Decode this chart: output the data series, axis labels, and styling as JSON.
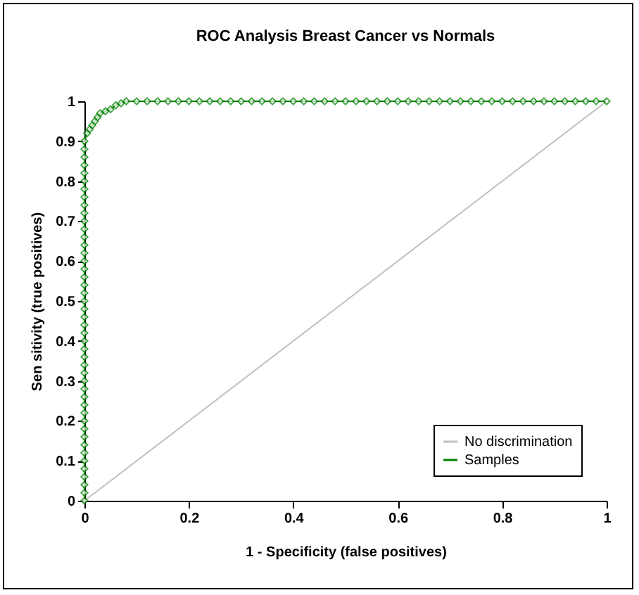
{
  "chart_data": {
    "type": "line",
    "title": "ROC Analysis Breast Cancer vs Normals",
    "xlabel": "1 - Specificity (false positives)",
    "ylabel": "Sen sitivity (true positives)",
    "xlim": [
      0,
      1
    ],
    "ylim": [
      0,
      1
    ],
    "xticks": [
      0,
      0.2,
      0.4,
      0.6,
      0.8,
      1
    ],
    "yticks": [
      0,
      0.1,
      0.2,
      0.3,
      0.4,
      0.5,
      0.6,
      0.7,
      0.8,
      0.9,
      1
    ],
    "grid": false,
    "legend": "bottom right",
    "series": [
      {
        "name": "No discrimination",
        "color": "#c0c0c0",
        "marker": "none",
        "x": [
          0,
          1
        ],
        "values": [
          0,
          1
        ]
      },
      {
        "name": "Samples",
        "color": "#008000",
        "marker": "diamond",
        "x": [
          0,
          0,
          0,
          0,
          0,
          0,
          0,
          0,
          0,
          0,
          0,
          0,
          0,
          0,
          0,
          0,
          0,
          0,
          0,
          0,
          0,
          0,
          0,
          0,
          0,
          0,
          0,
          0,
          0,
          0,
          0,
          0,
          0,
          0,
          0,
          0,
          0,
          0,
          0,
          0,
          0,
          0,
          0,
          0,
          0,
          0,
          0.005,
          0.01,
          0.015,
          0.02,
          0.025,
          0.03,
          0.04,
          0.05,
          0.06,
          0.07,
          0.08,
          0.1,
          0.12,
          0.14,
          0.16,
          0.18,
          0.2,
          0.22,
          0.24,
          0.26,
          0.28,
          0.3,
          0.32,
          0.34,
          0.36,
          0.38,
          0.4,
          0.42,
          0.44,
          0.46,
          0.48,
          0.5,
          0.52,
          0.54,
          0.56,
          0.58,
          0.6,
          0.62,
          0.64,
          0.66,
          0.68,
          0.7,
          0.72,
          0.74,
          0.76,
          0.78,
          0.8,
          0.82,
          0.84,
          0.86,
          0.88,
          0.9,
          0.92,
          0.94,
          0.96,
          0.98,
          1
        ],
        "values": [
          0,
          0.02,
          0.04,
          0.06,
          0.08,
          0.1,
          0.12,
          0.14,
          0.16,
          0.18,
          0.2,
          0.22,
          0.24,
          0.26,
          0.28,
          0.3,
          0.32,
          0.34,
          0.36,
          0.38,
          0.4,
          0.42,
          0.44,
          0.46,
          0.48,
          0.5,
          0.52,
          0.54,
          0.56,
          0.58,
          0.6,
          0.62,
          0.64,
          0.66,
          0.68,
          0.7,
          0.72,
          0.74,
          0.76,
          0.78,
          0.8,
          0.82,
          0.84,
          0.86,
          0.88,
          0.9,
          0.92,
          0.93,
          0.94,
          0.95,
          0.96,
          0.97,
          0.975,
          0.98,
          0.99,
          0.995,
          1,
          1,
          1,
          1,
          1,
          1,
          1,
          1,
          1,
          1,
          1,
          1,
          1,
          1,
          1,
          1,
          1,
          1,
          1,
          1,
          1,
          1,
          1,
          1,
          1,
          1,
          1,
          1,
          1,
          1,
          1,
          1,
          1,
          1,
          1,
          1,
          1,
          1,
          1,
          1,
          1,
          1,
          1,
          1,
          1,
          1,
          1
        ]
      }
    ]
  }
}
